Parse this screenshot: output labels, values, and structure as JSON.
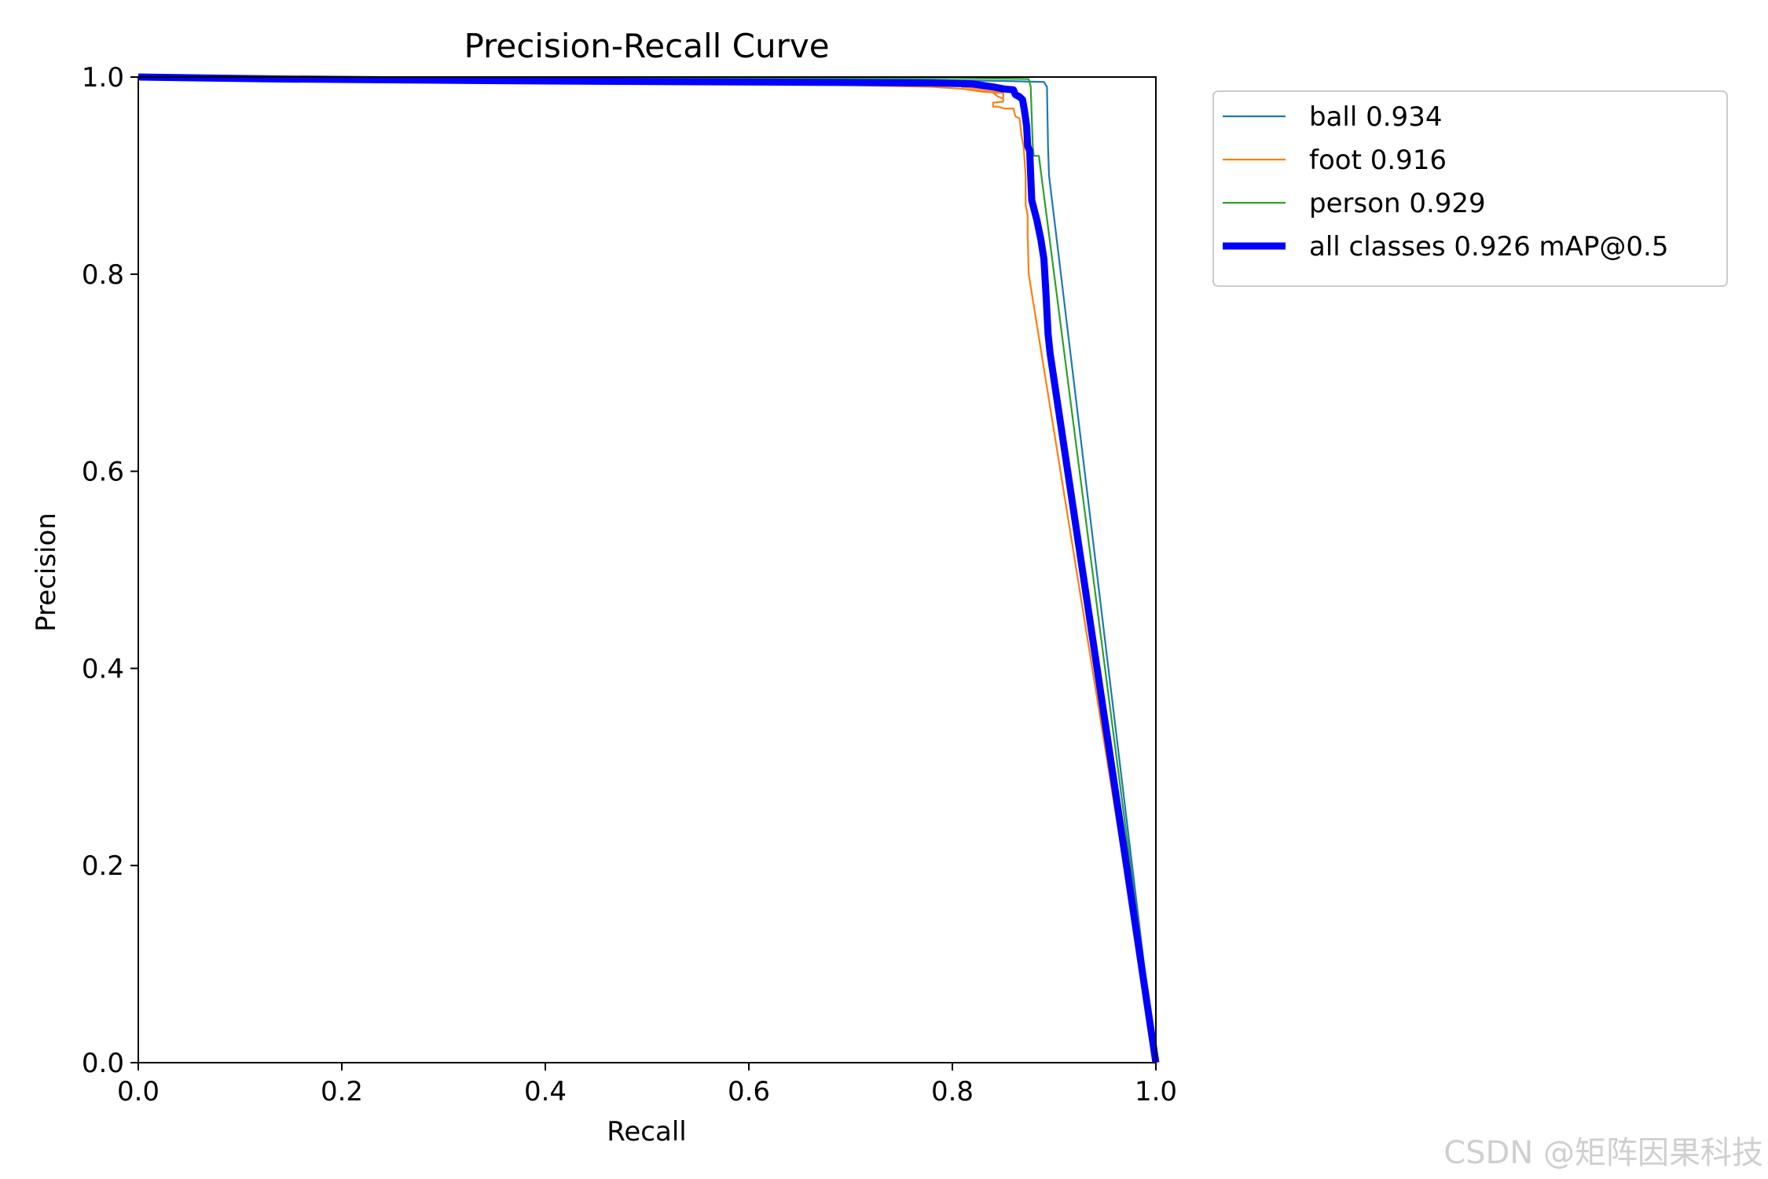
{
  "colors": {
    "ball": "#1f77b4",
    "foot": "#ff7f0e",
    "person": "#2ca02c",
    "all": "#0000ff",
    "axis": "#000000",
    "watermark": "#cfcfcf"
  },
  "watermark": "CSDN @矩阵因果科技",
  "chart_data": {
    "type": "line",
    "title": "Precision-Recall Curve",
    "xlabel": "Recall",
    "ylabel": "Precision",
    "xlim": [
      0,
      1
    ],
    "ylim": [
      0,
      1
    ],
    "grid": false,
    "legend_position": "outside-top-right",
    "xticks": [
      "0.0",
      "0.2",
      "0.4",
      "0.6",
      "0.8",
      "1.0"
    ],
    "yticks": [
      "0.0",
      "0.2",
      "0.4",
      "0.6",
      "0.8",
      "1.0"
    ],
    "series": [
      {
        "name": "ball 0.934",
        "color_key": "ball",
        "thick": false,
        "points": [
          [
            0.0,
            1.0
          ],
          [
            0.3,
            0.999
          ],
          [
            0.6,
            0.998
          ],
          [
            0.78,
            0.997
          ],
          [
            0.85,
            0.996
          ],
          [
            0.89,
            0.995
          ],
          [
            0.893,
            0.99
          ],
          [
            0.894,
            0.93
          ],
          [
            0.895,
            0.9
          ],
          [
            1.0,
            0.0
          ]
        ]
      },
      {
        "name": "foot 0.916",
        "color_key": "foot",
        "thick": false,
        "points": [
          [
            0.0,
            1.0
          ],
          [
            0.14,
            0.997
          ],
          [
            0.4,
            0.995
          ],
          [
            0.6,
            0.994
          ],
          [
            0.78,
            0.99
          ],
          [
            0.81,
            0.988
          ],
          [
            0.83,
            0.985
          ],
          [
            0.85,
            0.984
          ],
          [
            0.84,
            0.984
          ],
          [
            0.845,
            0.98
          ],
          [
            0.85,
            0.978
          ],
          [
            0.85,
            0.985
          ],
          [
            0.84,
            0.985
          ],
          [
            0.81,
            0.988
          ],
          [
            0.81,
            0.99
          ],
          [
            0.85,
            0.986
          ],
          [
            0.85,
            0.975
          ],
          [
            0.84,
            0.974
          ],
          [
            0.84,
            0.97
          ],
          [
            0.845,
            0.97
          ],
          [
            0.851,
            0.968
          ],
          [
            0.86,
            0.968
          ],
          [
            0.862,
            0.96
          ],
          [
            0.866,
            0.958
          ],
          [
            0.868,
            0.94
          ],
          [
            0.87,
            0.93
          ],
          [
            0.872,
            0.9
          ],
          [
            0.872,
            0.87
          ],
          [
            0.874,
            0.86
          ],
          [
            0.874,
            0.84
          ],
          [
            0.875,
            0.8
          ],
          [
            1.0,
            0.0
          ]
        ]
      },
      {
        "name": "person 0.929",
        "color_key": "person",
        "thick": false,
        "points": [
          [
            0.0,
            1.0
          ],
          [
            0.5,
            0.999
          ],
          [
            0.8,
            0.999
          ],
          [
            0.875,
            0.998
          ],
          [
            0.877,
            0.99
          ],
          [
            0.878,
            0.96
          ],
          [
            0.879,
            0.93
          ],
          [
            0.88,
            0.92
          ],
          [
            0.885,
            0.92
          ],
          [
            1.0,
            0.0
          ]
        ]
      },
      {
        "name": "all classes 0.926 mAP@0.5",
        "color_key": "all",
        "thick": true,
        "points": [
          [
            0.0,
            1.0
          ],
          [
            0.14,
            0.998
          ],
          [
            0.4,
            0.996
          ],
          [
            0.6,
            0.995
          ],
          [
            0.78,
            0.994
          ],
          [
            0.82,
            0.993
          ],
          [
            0.84,
            0.99
          ],
          [
            0.85,
            0.988
          ],
          [
            0.86,
            0.987
          ],
          [
            0.862,
            0.982
          ],
          [
            0.866,
            0.98
          ],
          [
            0.869,
            0.977
          ],
          [
            0.871,
            0.965
          ],
          [
            0.873,
            0.95
          ],
          [
            0.874,
            0.93
          ],
          [
            0.876,
            0.925
          ],
          [
            0.877,
            0.9
          ],
          [
            0.878,
            0.875
          ],
          [
            0.883,
            0.855
          ],
          [
            0.887,
            0.835
          ],
          [
            0.89,
            0.815
          ],
          [
            0.892,
            0.78
          ],
          [
            0.894,
            0.74
          ],
          [
            0.896,
            0.72
          ],
          [
            1.0,
            0.0
          ]
        ]
      }
    ]
  }
}
